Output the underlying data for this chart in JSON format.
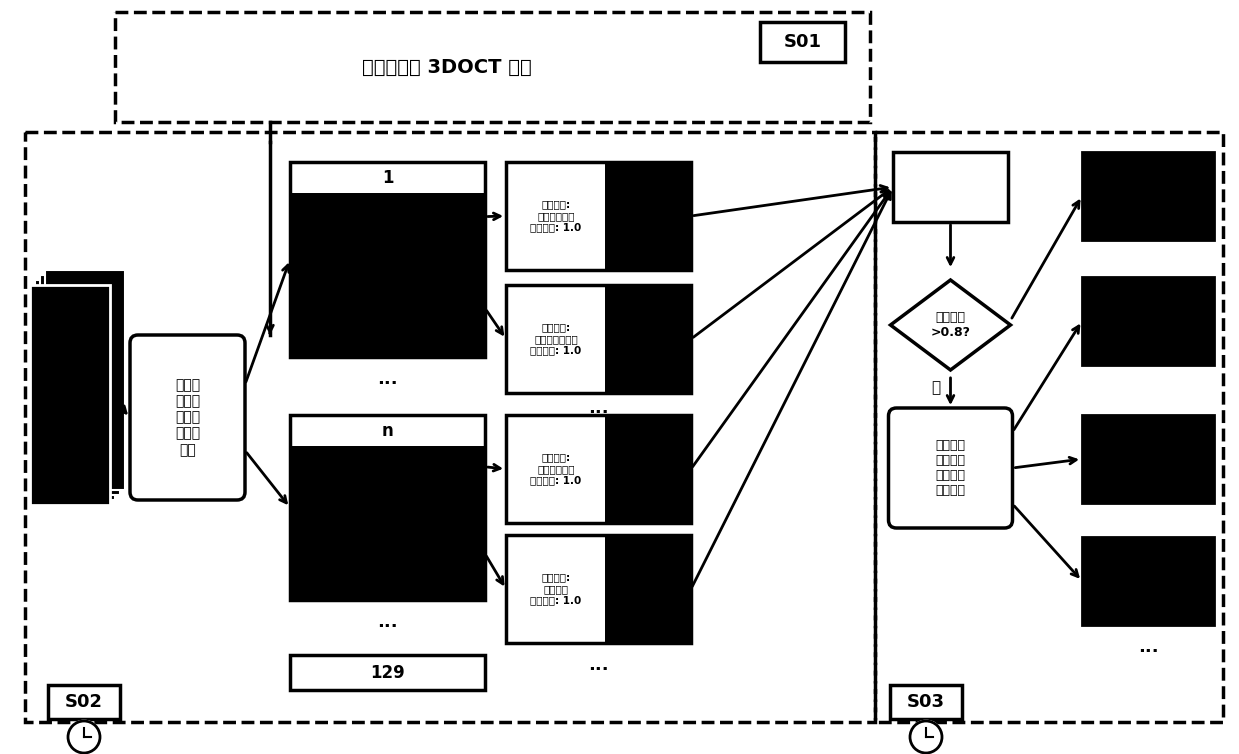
{
  "bg_color": "#ffffff",
  "fig_width": 12.39,
  "fig_height": 7.54,
  "s01_label": "S01",
  "s02_label": "S02",
  "s03_label": "S03",
  "top_box_text": "采集视网膜 3DOCT 图像",
  "model_box_text": "多种视\n网膜病\n灶检测\n及分割\n模型",
  "result_texts": [
    "检测结果:\n视网膜下积液\n检测分数: 1.0",
    "检测结果:\n脉络膜新生血管\n检测分数: 1.0",
    "检测结果:\n视网膜下积液\n检测分数: 1.0",
    "检测结果:\n黄斑裂孔\n检测分数: 1.0"
  ],
  "diamond_text": "检测分数\n>0.8?",
  "diamond_label": "是",
  "process_box_text": "改进的距\n离正则化\n的水平集\n演化方法",
  "dots": "..."
}
